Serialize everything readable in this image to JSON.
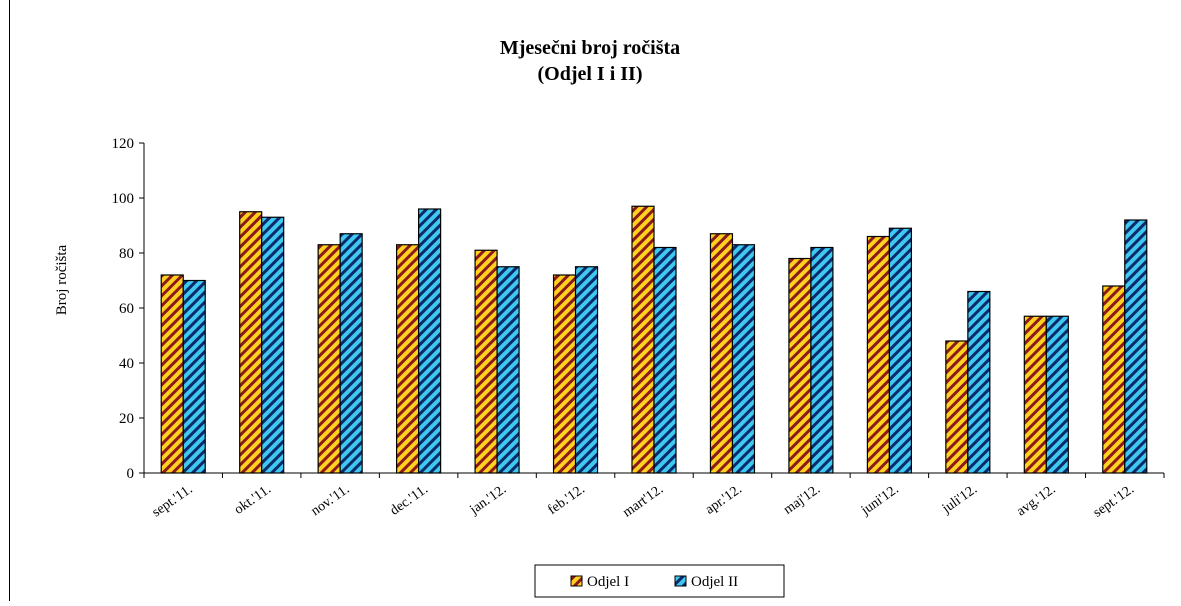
{
  "chart_data": {
    "type": "bar",
    "title": "Mjesečni broj ročišta",
    "subtitle": "(Odjel I i II)",
    "xlabel": "",
    "ylabel": "Broj ročišta",
    "ylim": [
      0,
      120
    ],
    "yticks": [
      "0",
      "20",
      "40",
      "60",
      "80",
      "100",
      "120"
    ],
    "categories": [
      "sept.'11.",
      "okt.'11.",
      "nov.'11.",
      "dec.'11.",
      "jan.'12.",
      "feb.'12.",
      "mart'12.",
      "apr.'12.",
      "maj'12.",
      "juni'12.",
      "juli'12.",
      "avg.'12.",
      "sept.'12."
    ],
    "series": [
      {
        "name": "Odjel I",
        "color": "#FFD21F",
        "stripe": "#8B1A1A",
        "values": [
          72,
          95,
          83,
          83,
          81,
          72,
          97,
          87,
          78,
          86,
          48,
          57,
          68
        ]
      },
      {
        "name": "Odjel II",
        "color": "#3FC8F0",
        "stripe": "#0A2A6A",
        "values": [
          70,
          93,
          87,
          96,
          75,
          75,
          82,
          83,
          82,
          89,
          66,
          57,
          92
        ]
      }
    ],
    "grid": false,
    "legend": "bottom-center"
  }
}
